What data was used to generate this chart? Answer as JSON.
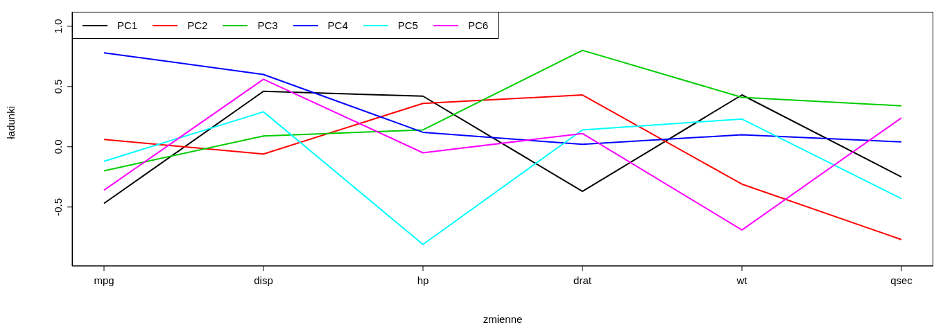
{
  "chart_data": {
    "type": "line",
    "xlabel": "zmienne",
    "ylabel": "ładunki",
    "categories": [
      "mpg",
      "disp",
      "hp",
      "drat",
      "wt",
      "qsec"
    ],
    "series": [
      {
        "name": "PC1",
        "color": "#000000",
        "values": [
          -0.47,
          0.46,
          0.42,
          -0.37,
          0.43,
          -0.25
        ]
      },
      {
        "name": "PC2",
        "color": "#ff0000",
        "values": [
          0.06,
          -0.06,
          0.36,
          0.43,
          -0.31,
          -0.77
        ]
      },
      {
        "name": "PC3",
        "color": "#00cd00",
        "values": [
          -0.2,
          0.09,
          0.14,
          0.8,
          0.41,
          0.34
        ]
      },
      {
        "name": "PC4",
        "color": "#0000ff",
        "values": [
          0.78,
          0.6,
          0.12,
          0.02,
          0.1,
          0.04
        ]
      },
      {
        "name": "PC5",
        "color": "#00ffff",
        "values": [
          -0.12,
          0.29,
          -0.81,
          0.14,
          0.23,
          -0.43
        ]
      },
      {
        "name": "PC6",
        "color": "#ff00ff",
        "values": [
          -0.36,
          0.56,
          -0.05,
          0.11,
          -0.69,
          0.24
        ]
      }
    ],
    "ylim": [
      -0.99,
      1.12
    ],
    "yticks": [
      -0.5,
      {
        "value": 0,
        "label": "0.0"
      },
      0.5,
      {
        "value": 1,
        "label": "1.0"
      }
    ],
    "grid": false,
    "legend": "top left",
    "marker": "none",
    "line_style": "solid"
  }
}
